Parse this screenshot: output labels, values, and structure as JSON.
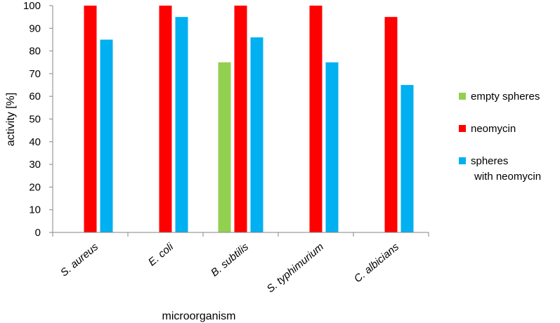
{
  "chart_data": {
    "type": "bar",
    "xlabel": "microorganism",
    "ylabel": "activity [%]",
    "ylim": [
      0,
      100
    ],
    "yticks": [
      0,
      10,
      20,
      30,
      40,
      50,
      60,
      70,
      80,
      90,
      100
    ],
    "grid": false,
    "legend_position": "right",
    "categories": [
      "S. aureus",
      "E. coli",
      "B. subtilis",
      "S. typhimurium",
      "C. albicians"
    ],
    "series": [
      {
        "name": "empty spheres",
        "color": "#92d050",
        "values": [
          null,
          null,
          75,
          null,
          null
        ]
      },
      {
        "name": "neomycin",
        "color": "#ff0000",
        "values": [
          100,
          100,
          100,
          100,
          95
        ]
      },
      {
        "name": "spheres with neomycin",
        "name_lines": [
          "spheres",
          "with neomycin"
        ],
        "color": "#00b0f0",
        "values": [
          85,
          95,
          86,
          75,
          65
        ]
      }
    ]
  }
}
